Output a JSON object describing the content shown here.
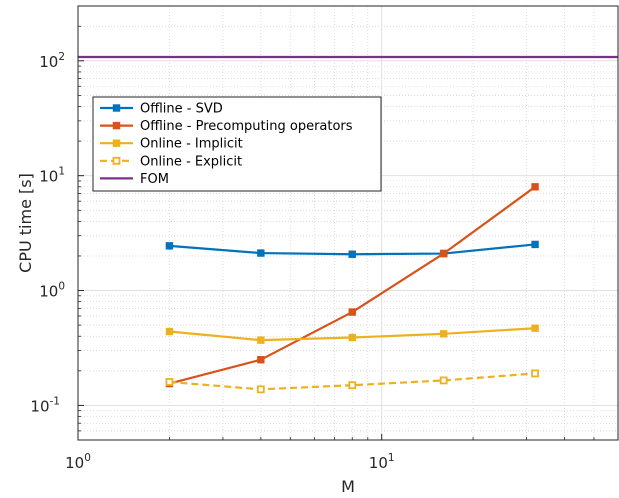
{
  "chart_data": {
    "type": "line",
    "xlabel": "M",
    "ylabel": "CPU time [s]",
    "xscale": "log",
    "yscale": "log",
    "xlim": [
      1,
      60
    ],
    "ylim": [
      0.05,
      300
    ],
    "grid": true,
    "minor_grid": true,
    "legend_position": "upper-left",
    "x_ticks": [
      {
        "value": 1,
        "base": "10",
        "exp": "0"
      },
      {
        "value": 10,
        "base": "10",
        "exp": "1"
      }
    ],
    "y_ticks": [
      {
        "value": 0.1,
        "base": "10",
        "exp": "-1"
      },
      {
        "value": 1,
        "base": "10",
        "exp": "0"
      },
      {
        "value": 10,
        "base": "10",
        "exp": "1"
      },
      {
        "value": 100,
        "base": "10",
        "exp": "2"
      }
    ],
    "series": [
      {
        "name": "Offline - SVD",
        "color": "#0072BD",
        "dashed": false,
        "marker": "filled-square",
        "x": [
          2,
          4,
          8,
          16,
          32
        ],
        "y": [
          2.45,
          2.12,
          2.07,
          2.1,
          2.52
        ]
      },
      {
        "name": "Offline - Precomputing operators",
        "color": "#D95319",
        "dashed": false,
        "marker": "filled-square",
        "x": [
          2,
          4,
          8,
          16,
          32
        ],
        "y": [
          0.155,
          0.25,
          0.65,
          2.1,
          8.0
        ]
      },
      {
        "name": "Online - Implicit",
        "color": "#EDB120",
        "dashed": false,
        "marker": "filled-square",
        "x": [
          2,
          4,
          8,
          16,
          32
        ],
        "y": [
          0.44,
          0.37,
          0.39,
          0.42,
          0.47
        ]
      },
      {
        "name": "Online - Explicit",
        "color": "#EDB120",
        "dashed": true,
        "marker": "open-square",
        "x": [
          2,
          4,
          8,
          16,
          32
        ],
        "y": [
          0.16,
          0.138,
          0.15,
          0.165,
          0.19
        ]
      },
      {
        "name": "FOM",
        "color": "#7E2F8E",
        "dashed": false,
        "marker": "none",
        "x": [
          1,
          60
        ],
        "y": [
          108,
          108
        ]
      }
    ]
  }
}
